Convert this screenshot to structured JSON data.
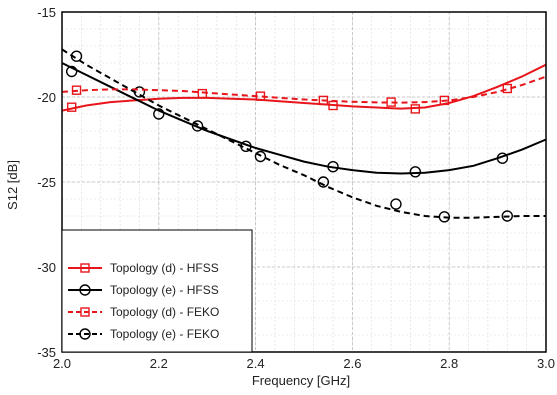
{
  "chart_data": {
    "type": "line",
    "xlabel": "Frequency [GHz]",
    "ylabel": "S12 [dB]",
    "xlim": [
      2.0,
      3.0
    ],
    "ylim": [
      -35,
      -15
    ],
    "xticks": [
      2.0,
      2.2,
      2.4,
      2.6,
      2.8,
      3.0
    ],
    "xtick_labels": [
      "2.0",
      "2.2",
      "2.4",
      "2.6",
      "2.8",
      "3.0"
    ],
    "yticks": [
      -35,
      -30,
      -25,
      -20,
      -15
    ],
    "ytick_labels": [
      "-35",
      "-30",
      "-25",
      "-20",
      "-15"
    ],
    "grid": true,
    "legend_position": "bottom-left",
    "series": [
      {
        "name": "Topology (d) - HFSS",
        "color": "#e8161b",
        "dash": "solid",
        "marker": "square",
        "x": [
          2.0,
          2.05,
          2.1,
          2.15,
          2.2,
          2.25,
          2.3,
          2.35,
          2.4,
          2.45,
          2.5,
          2.55,
          2.6,
          2.65,
          2.7,
          2.75,
          2.8,
          2.85,
          2.9,
          2.95,
          3.0
        ],
        "y": [
          -20.8,
          -20.5,
          -20.3,
          -20.2,
          -20.1,
          -20.05,
          -20.05,
          -20.1,
          -20.15,
          -20.25,
          -20.35,
          -20.45,
          -20.55,
          -20.62,
          -20.68,
          -20.62,
          -20.35,
          -19.95,
          -19.4,
          -18.8,
          -18.1
        ],
        "markers_x": [
          2.02,
          2.56,
          2.73
        ],
        "markers_y": [
          -20.6,
          -20.5,
          -20.7
        ]
      },
      {
        "name": "Topology (e) - HFSS",
        "color": "#000000",
        "dash": "solid",
        "marker": "circle",
        "x": [
          2.0,
          2.05,
          2.1,
          2.15,
          2.2,
          2.25,
          2.3,
          2.35,
          2.4,
          2.45,
          2.5,
          2.55,
          2.6,
          2.65,
          2.7,
          2.75,
          2.8,
          2.85,
          2.9,
          2.95,
          3.0
        ],
        "y": [
          -18.0,
          -18.7,
          -19.4,
          -20.1,
          -20.8,
          -21.4,
          -22.0,
          -22.5,
          -23.0,
          -23.4,
          -23.8,
          -24.1,
          -24.3,
          -24.45,
          -24.5,
          -24.45,
          -24.3,
          -24.05,
          -23.6,
          -23.1,
          -22.5
        ],
        "markers_x": [
          2.02,
          2.16,
          2.28,
          2.38,
          2.56,
          2.73,
          2.91
        ],
        "markers_y": [
          -18.5,
          -19.7,
          -21.7,
          -22.9,
          -24.1,
          -24.4,
          -23.6
        ]
      },
      {
        "name": "Topology (d) - FEKO",
        "color": "#e8161b",
        "dash": "dashed",
        "marker": "square",
        "x": [
          2.0,
          2.05,
          2.1,
          2.15,
          2.2,
          2.25,
          2.3,
          2.35,
          2.4,
          2.45,
          2.5,
          2.55,
          2.6,
          2.65,
          2.7,
          2.75,
          2.8,
          2.85,
          2.9,
          2.95,
          3.0
        ],
        "y": [
          -19.7,
          -19.6,
          -19.55,
          -19.55,
          -19.6,
          -19.65,
          -19.75,
          -19.85,
          -19.95,
          -20.05,
          -20.15,
          -20.22,
          -20.28,
          -20.32,
          -20.33,
          -20.3,
          -20.2,
          -20.0,
          -19.7,
          -19.3,
          -18.8
        ],
        "markers_x": [
          2.03,
          2.29,
          2.41,
          2.54,
          2.68,
          2.79,
          2.92
        ],
        "markers_y": [
          -19.6,
          -19.8,
          -19.95,
          -20.2,
          -20.3,
          -20.2,
          -19.5
        ]
      },
      {
        "name": "Topology (e) - FEKO",
        "color": "#000000",
        "dash": "dashed",
        "marker": "circle",
        "x": [
          2.0,
          2.05,
          2.1,
          2.15,
          2.2,
          2.25,
          2.3,
          2.35,
          2.4,
          2.45,
          2.5,
          2.55,
          2.6,
          2.65,
          2.7,
          2.75,
          2.8,
          2.85,
          2.9,
          2.95,
          3.0
        ],
        "y": [
          -17.2,
          -18.1,
          -18.9,
          -19.7,
          -20.5,
          -21.2,
          -21.9,
          -22.6,
          -23.3,
          -24.0,
          -24.6,
          -25.3,
          -25.9,
          -26.4,
          -26.75,
          -27.0,
          -27.1,
          -27.1,
          -27.05,
          -27.0,
          -27.0
        ],
        "markers_x": [
          2.03,
          2.2,
          2.41,
          2.54,
          2.69,
          2.79,
          2.92
        ],
        "markers_y": [
          -17.6,
          -21.0,
          -23.5,
          -25.0,
          -26.3,
          -27.05,
          -27.0
        ]
      }
    ]
  }
}
